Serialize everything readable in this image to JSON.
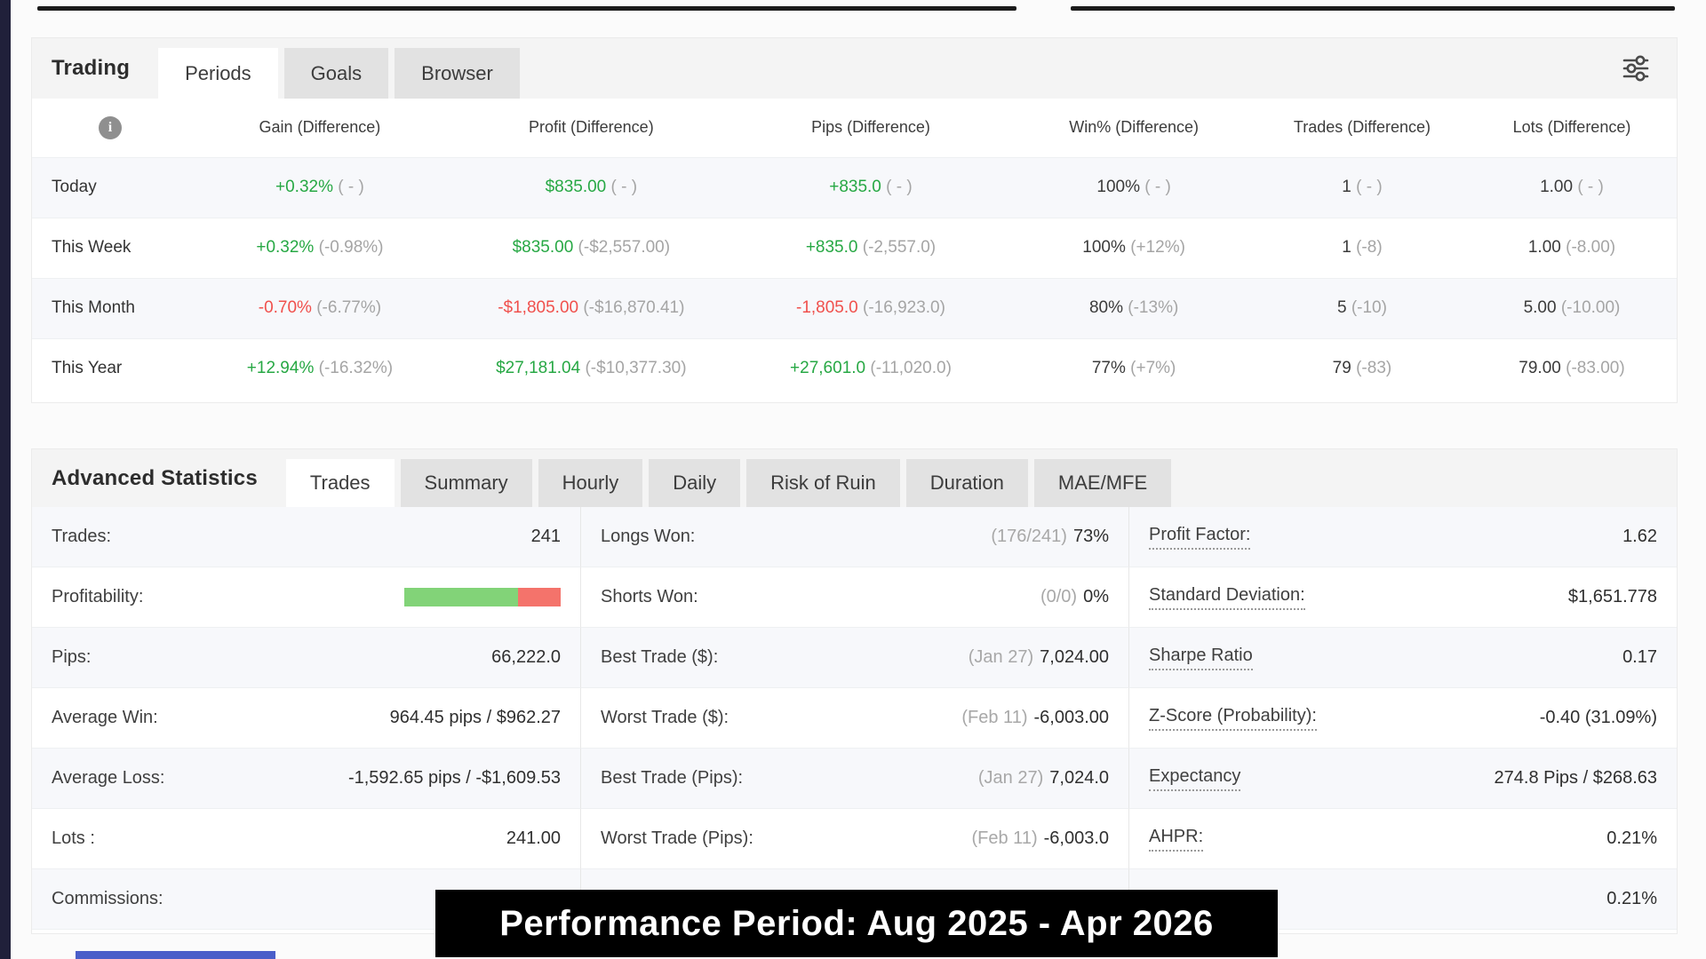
{
  "banner": {
    "text": "Performance Period: Aug 2025 - Apr 2026"
  },
  "colors": {
    "positive": "#27a844",
    "negative": "#f0504c",
    "muted_diff": "#a5a5a5",
    "bar_green": "#82d378",
    "bar_red": "#f4736b",
    "banner_bg": "#000000",
    "banner_text": "#ffffff",
    "accent_blue": "#4a5ec9"
  },
  "trading_panel": {
    "title": "Trading",
    "tabs": [
      {
        "label": "Periods"
      },
      {
        "label": "Goals"
      },
      {
        "label": "Browser"
      }
    ],
    "icons": {
      "filter": "sliders-icon",
      "info": "info-icon"
    },
    "columns": [
      "Gain (Difference)",
      "Profit (Difference)",
      "Pips (Difference)",
      "Win% (Difference)",
      "Trades (Difference)",
      "Lots (Difference)"
    ],
    "rows": [
      {
        "label": "Today",
        "cells": [
          {
            "v": "+0.32%",
            "d": "( - )"
          },
          {
            "v": "$835.00",
            "d": "( - )"
          },
          {
            "v": "+835.0",
            "d": "( - )"
          },
          {
            "v": "100%",
            "d": "( - )"
          },
          {
            "v": "1",
            "d": "( - )"
          },
          {
            "v": "1.00",
            "d": "( - )"
          }
        ]
      },
      {
        "label": "This Week",
        "cells": [
          {
            "v": "+0.32%",
            "d": "(-0.98%)"
          },
          {
            "v": "$835.00",
            "d": "(-$2,557.00)"
          },
          {
            "v": "+835.0",
            "d": "(-2,557.0)"
          },
          {
            "v": "100%",
            "d": "(+12%)"
          },
          {
            "v": "1",
            "d": "(-8)"
          },
          {
            "v": "1.00",
            "d": "(-8.00)"
          }
        ]
      },
      {
        "label": "This Month",
        "cells": [
          {
            "v": "-0.70%",
            "d": "(-6.77%)"
          },
          {
            "v": "-$1,805.00",
            "d": "(-$16,870.41)"
          },
          {
            "v": "-1,805.0",
            "d": "(-16,923.0)"
          },
          {
            "v": "80%",
            "d": "(-13%)"
          },
          {
            "v": "5",
            "d": "(-10)"
          },
          {
            "v": "5.00",
            "d": "(-10.00)"
          }
        ]
      },
      {
        "label": "This Year",
        "cells": [
          {
            "v": "+12.94%",
            "d": "(-16.32%)"
          },
          {
            "v": "$27,181.04",
            "d": "(-$10,377.30)"
          },
          {
            "v": "+27,601.0",
            "d": "(-11,020.0)"
          },
          {
            "v": "77%",
            "d": "(+7%)"
          },
          {
            "v": "79",
            "d": "(-83)"
          },
          {
            "v": "79.00",
            "d": "(-83.00)"
          }
        ]
      }
    ]
  },
  "stats_panel": {
    "title": "Advanced Statistics",
    "tabs": [
      {
        "label": "Trades"
      },
      {
        "label": "Summary"
      },
      {
        "label": "Hourly"
      },
      {
        "label": "Daily"
      },
      {
        "label": "Risk of Ruin"
      },
      {
        "label": "Duration"
      },
      {
        "label": "MAE/MFE"
      }
    ],
    "profitability_bar": {
      "green_pct": 73,
      "red_pct": 27
    },
    "col1": [
      {
        "label": "Trades:",
        "value": "241"
      },
      {
        "label": "Profitability:",
        "value": ""
      },
      {
        "label": "Pips:",
        "value": "66,222.0"
      },
      {
        "label": "Average Win:",
        "value": "964.45 pips / $962.27"
      },
      {
        "label": "Average Loss:",
        "value": "-1,592.65 pips / -$1,609.53"
      },
      {
        "label": "Lots :",
        "value": "241.00"
      },
      {
        "label": "Commissions:",
        "value": ""
      }
    ],
    "col2": [
      {
        "label": "Longs Won:",
        "prefix": "(176/241)",
        "value": "73%"
      },
      {
        "label": "Shorts Won:",
        "prefix": "(0/0)",
        "value": "0%"
      },
      {
        "label": "Best Trade ($):",
        "prefix": "(Jan 27)",
        "value": "7,024.00"
      },
      {
        "label": "Worst Trade ($):",
        "prefix": "(Feb 11)",
        "value": "-6,003.00"
      },
      {
        "label": "Best Trade (Pips):",
        "prefix": "(Jan 27)",
        "value": "7,024.0"
      },
      {
        "label": "Worst Trade (Pips):",
        "prefix": "(Feb 11)",
        "value": "-6,003.0"
      },
      {
        "label": "",
        "prefix": "",
        "value": ""
      }
    ],
    "col3": [
      {
        "label": "Profit Factor:",
        "value": "1.62"
      },
      {
        "label": "Standard Deviation:",
        "value": "$1,651.778"
      },
      {
        "label": "Sharpe Ratio",
        "value": "0.17"
      },
      {
        "label": "Z-Score (Probability):",
        "value": "-0.40 (31.09%)"
      },
      {
        "label": "Expectancy",
        "value": "274.8 Pips / $268.63"
      },
      {
        "label": "AHPR:",
        "value": "0.21%"
      },
      {
        "label": "",
        "value": "0.21%"
      }
    ]
  }
}
